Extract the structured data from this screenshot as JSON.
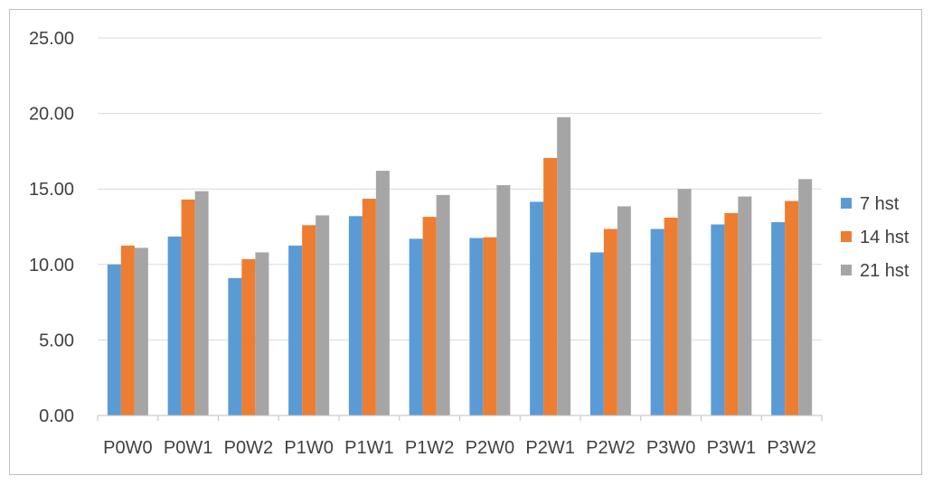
{
  "chart_data": {
    "type": "bar",
    "categories": [
      "P0W0",
      "P0W1",
      "P0W2",
      "P1W0",
      "P1W1",
      "P1W2",
      "P2W0",
      "P2W1",
      "P2W2",
      "P3W0",
      "P3W1",
      "P3W2"
    ],
    "series": [
      {
        "name": "7 hst",
        "color": "#5b9bd5",
        "values": [
          10.0,
          11.85,
          9.1,
          11.25,
          13.2,
          11.7,
          11.75,
          14.15,
          10.8,
          12.35,
          12.65,
          12.8
        ]
      },
      {
        "name": "14 hst",
        "color": "#ed7d31",
        "values": [
          11.25,
          14.3,
          10.35,
          12.6,
          14.35,
          13.15,
          11.8,
          17.05,
          12.35,
          13.1,
          13.4,
          14.2
        ]
      },
      {
        "name": "21 hst",
        "color": "#a5a5a5",
        "values": [
          11.1,
          14.85,
          10.8,
          13.25,
          16.2,
          14.6,
          15.25,
          19.75,
          13.85,
          15.0,
          14.5,
          15.65
        ]
      }
    ],
    "ylim": [
      0,
      25
    ],
    "yticks": [
      "0.00",
      "5.00",
      "10.00",
      "15.00",
      "20.00",
      "25.00"
    ],
    "grid": true,
    "legend_position": "right",
    "title": "",
    "xlabel": "",
    "ylabel": ""
  }
}
